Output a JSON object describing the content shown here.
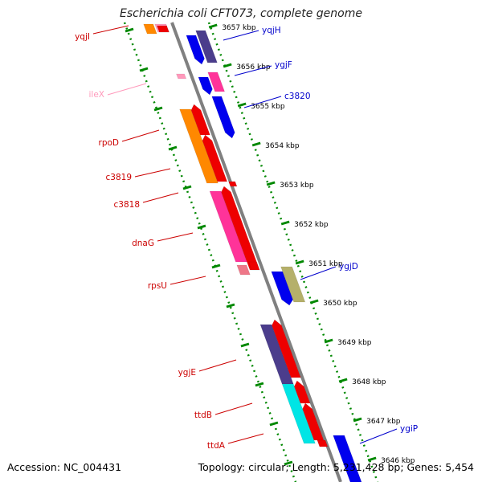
{
  "title": "Escherichia coli CFT073, complete genome",
  "footer": {
    "accession": "Accession: NC_004431",
    "topology": "Topology: circular; Length: 5,231,428 bp; Genes: 5,454"
  },
  "kbp_ticks": [
    {
      "label": "3657 kbp",
      "kbp": 3657
    },
    {
      "label": "3656 kbp",
      "kbp": 3656
    },
    {
      "label": "3655 kbp",
      "kbp": 3655
    },
    {
      "label": "3654 kbp",
      "kbp": 3654
    },
    {
      "label": "3653 kbp",
      "kbp": 3653
    },
    {
      "label": "3652 kbp",
      "kbp": 3652
    },
    {
      "label": "3651 kbp",
      "kbp": 3651
    },
    {
      "label": "3650 kbp",
      "kbp": 3650
    },
    {
      "label": "3649 kbp",
      "kbp": 3649
    },
    {
      "label": "3648 kbp",
      "kbp": 3648
    },
    {
      "label": "3647 kbp",
      "kbp": 3647
    },
    {
      "label": "3646 kbp",
      "kbp": 3646
    }
  ],
  "left_labels": [
    {
      "name": "yqjI",
      "color": "#cc0000"
    },
    {
      "name": "ileX",
      "color": "#ff99bb"
    },
    {
      "name": "rpoD",
      "color": "#cc0000"
    },
    {
      "name": "c3819",
      "color": "#cc0000"
    },
    {
      "name": "c3818",
      "color": "#cc0000"
    },
    {
      "name": "dnaG",
      "color": "#cc0000"
    },
    {
      "name": "rpsU",
      "color": "#cc0000"
    },
    {
      "name": "ygjE",
      "color": "#cc0000"
    },
    {
      "name": "ttdB",
      "color": "#cc0000"
    },
    {
      "name": "ttdA",
      "color": "#cc0000"
    }
  ],
  "right_labels": [
    {
      "name": "yqjH",
      "color": "#0000cc"
    },
    {
      "name": "ygjF",
      "color": "#0000cc"
    },
    {
      "name": "c3820",
      "color": "#0000cc"
    },
    {
      "name": "ygjD",
      "color": "#0000cc"
    },
    {
      "name": "ygiP",
      "color": "#0000cc"
    }
  ],
  "colors": {
    "red": "#ee0000",
    "orange": "#ff8800",
    "pink": "#ff3399",
    "light_pink": "#ff99bb",
    "blue": "#0000ee",
    "purple": "#4b3d8c",
    "olive": "#b5b06a",
    "cyan": "#00e5e5",
    "backbone": "#808080",
    "tick_green": "#008800"
  }
}
